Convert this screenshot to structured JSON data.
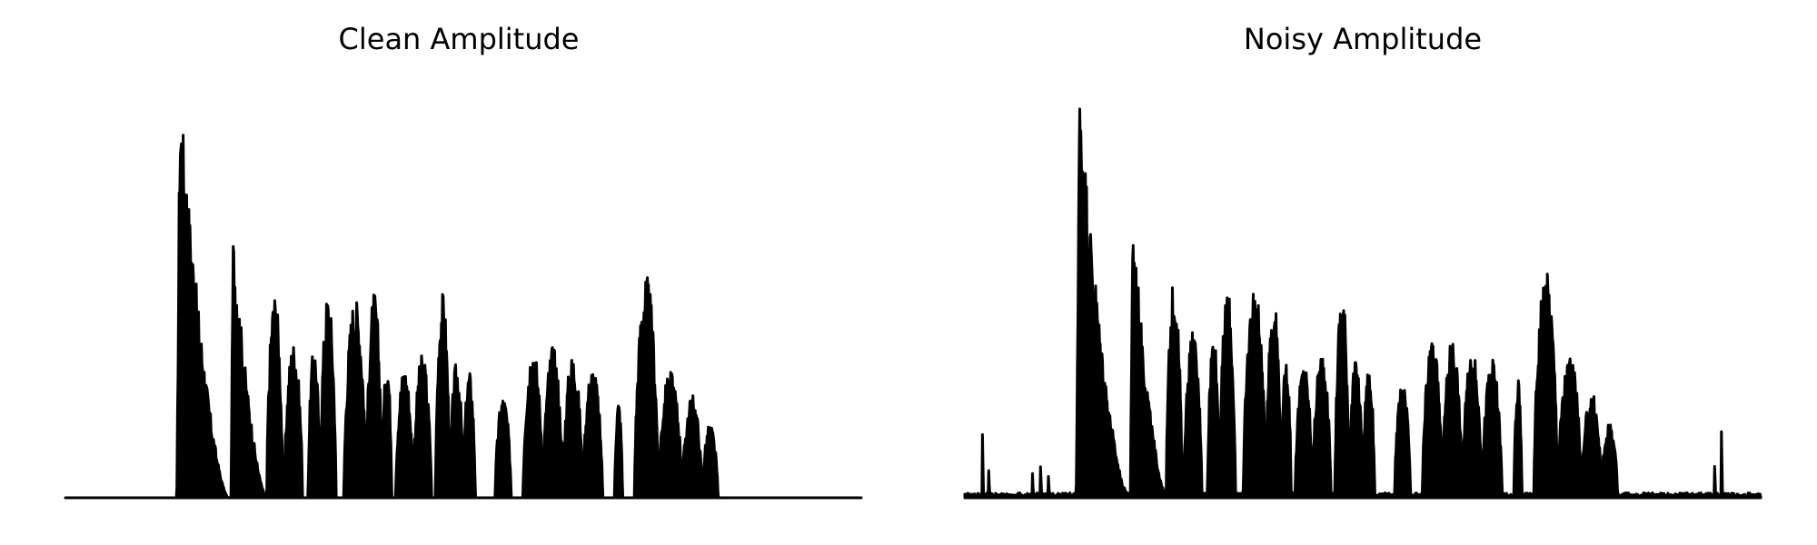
{
  "chart_data": [
    {
      "type": "area",
      "title": "Clean Amplitude",
      "xlabel": "",
      "ylabel": "",
      "axes_visible": false,
      "grid": false,
      "ylim": [
        0,
        1
      ],
      "color": "#000000",
      "segments": [
        {
          "start": 0.14,
          "end": 0.205,
          "peak": 1.0,
          "shape": "decay"
        },
        {
          "start": 0.208,
          "end": 0.253,
          "peak": 0.65,
          "shape": "decay"
        },
        {
          "start": 0.253,
          "end": 0.273,
          "peak": 0.5,
          "shape": "bump"
        },
        {
          "start": 0.275,
          "end": 0.298,
          "peak": 0.38,
          "shape": "bump"
        },
        {
          "start": 0.305,
          "end": 0.32,
          "peak": 0.37,
          "shape": "bump"
        },
        {
          "start": 0.32,
          "end": 0.34,
          "peak": 0.5,
          "shape": "bump"
        },
        {
          "start": 0.35,
          "end": 0.378,
          "peak": 0.49,
          "shape": "bump"
        },
        {
          "start": 0.378,
          "end": 0.398,
          "peak": 0.5,
          "shape": "bump"
        },
        {
          "start": 0.398,
          "end": 0.41,
          "peak": 0.34,
          "shape": "bump"
        },
        {
          "start": 0.415,
          "end": 0.437,
          "peak": 0.32,
          "shape": "bump"
        },
        {
          "start": 0.437,
          "end": 0.46,
          "peak": 0.35,
          "shape": "bump"
        },
        {
          "start": 0.465,
          "end": 0.483,
          "peak": 0.5,
          "shape": "bump"
        },
        {
          "start": 0.483,
          "end": 0.5,
          "peak": 0.33,
          "shape": "bump"
        },
        {
          "start": 0.5,
          "end": 0.515,
          "peak": 0.31,
          "shape": "bump"
        },
        {
          "start": 0.54,
          "end": 0.56,
          "peak": 0.25,
          "shape": "bump"
        },
        {
          "start": 0.575,
          "end": 0.6,
          "peak": 0.37,
          "shape": "bump"
        },
        {
          "start": 0.6,
          "end": 0.625,
          "peak": 0.37,
          "shape": "bump"
        },
        {
          "start": 0.625,
          "end": 0.65,
          "peak": 0.35,
          "shape": "bump"
        },
        {
          "start": 0.65,
          "end": 0.675,
          "peak": 0.32,
          "shape": "bump"
        },
        {
          "start": 0.69,
          "end": 0.7,
          "peak": 0.24,
          "shape": "bump"
        },
        {
          "start": 0.715,
          "end": 0.745,
          "peak": 0.54,
          "shape": "bump"
        },
        {
          "start": 0.745,
          "end": 0.775,
          "peak": 0.31,
          "shape": "bump"
        },
        {
          "start": 0.775,
          "end": 0.8,
          "peak": 0.25,
          "shape": "bump"
        },
        {
          "start": 0.8,
          "end": 0.82,
          "peak": 0.18,
          "shape": "bump"
        }
      ],
      "noise": 0.0
    },
    {
      "type": "area",
      "title": "Noisy Amplitude",
      "xlabel": "",
      "ylabel": "",
      "axes_visible": false,
      "grid": false,
      "ylim": [
        0,
        1
      ],
      "color": "#000000",
      "segments": [
        {
          "start": 0.14,
          "end": 0.205,
          "peak": 1.0,
          "shape": "decay"
        },
        {
          "start": 0.208,
          "end": 0.253,
          "peak": 0.68,
          "shape": "decay"
        },
        {
          "start": 0.253,
          "end": 0.273,
          "peak": 0.52,
          "shape": "bump"
        },
        {
          "start": 0.275,
          "end": 0.298,
          "peak": 0.4,
          "shape": "bump"
        },
        {
          "start": 0.305,
          "end": 0.32,
          "peak": 0.4,
          "shape": "bump"
        },
        {
          "start": 0.32,
          "end": 0.34,
          "peak": 0.5,
          "shape": "bump"
        },
        {
          "start": 0.35,
          "end": 0.378,
          "peak": 0.51,
          "shape": "bump"
        },
        {
          "start": 0.378,
          "end": 0.398,
          "peak": 0.48,
          "shape": "bump"
        },
        {
          "start": 0.398,
          "end": 0.41,
          "peak": 0.34,
          "shape": "bump"
        },
        {
          "start": 0.415,
          "end": 0.437,
          "peak": 0.32,
          "shape": "bump"
        },
        {
          "start": 0.437,
          "end": 0.46,
          "peak": 0.35,
          "shape": "bump"
        },
        {
          "start": 0.465,
          "end": 0.483,
          "peak": 0.5,
          "shape": "bump"
        },
        {
          "start": 0.483,
          "end": 0.5,
          "peak": 0.33,
          "shape": "bump"
        },
        {
          "start": 0.5,
          "end": 0.515,
          "peak": 0.31,
          "shape": "bump"
        },
        {
          "start": 0.54,
          "end": 0.56,
          "peak": 0.27,
          "shape": "bump"
        },
        {
          "start": 0.575,
          "end": 0.6,
          "peak": 0.38,
          "shape": "bump"
        },
        {
          "start": 0.6,
          "end": 0.625,
          "peak": 0.38,
          "shape": "bump"
        },
        {
          "start": 0.625,
          "end": 0.65,
          "peak": 0.35,
          "shape": "bump"
        },
        {
          "start": 0.65,
          "end": 0.675,
          "peak": 0.33,
          "shape": "bump"
        },
        {
          "start": 0.69,
          "end": 0.7,
          "peak": 0.28,
          "shape": "bump"
        },
        {
          "start": 0.715,
          "end": 0.745,
          "peak": 0.55,
          "shape": "bump"
        },
        {
          "start": 0.745,
          "end": 0.775,
          "peak": 0.34,
          "shape": "bump"
        },
        {
          "start": 0.775,
          "end": 0.8,
          "peak": 0.25,
          "shape": "bump"
        },
        {
          "start": 0.8,
          "end": 0.82,
          "peak": 0.18,
          "shape": "bump"
        }
      ],
      "spikes": [
        {
          "x": 0.022,
          "value": 0.15
        },
        {
          "x": 0.03,
          "value": 0.06
        },
        {
          "x": 0.085,
          "value": 0.05
        },
        {
          "x": 0.095,
          "value": 0.07
        },
        {
          "x": 0.105,
          "value": 0.04
        },
        {
          "x": 0.942,
          "value": 0.07
        },
        {
          "x": 0.951,
          "value": 0.15
        }
      ],
      "noise": 0.012
    }
  ]
}
